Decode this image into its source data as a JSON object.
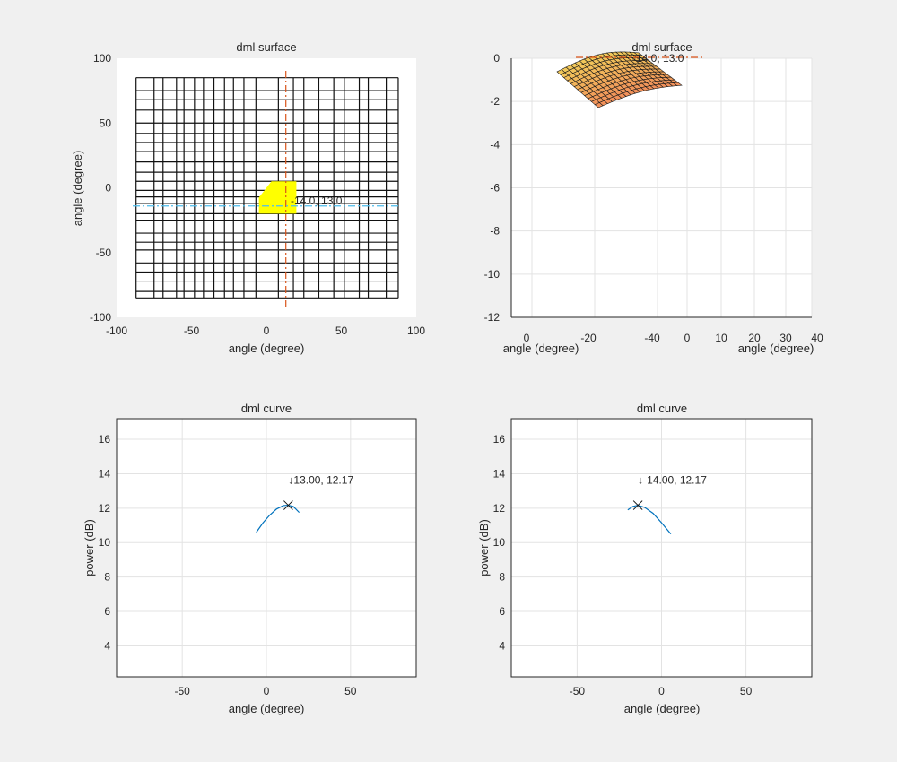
{
  "chart_data": [
    {
      "type": "heatmap",
      "title": "dml surface",
      "xlabel": "angle (degree)",
      "ylabel": "angle (degree)",
      "xlim": [
        -100,
        100
      ],
      "ylim": [
        -100,
        100
      ],
      "xticks": [
        "-100",
        "-50",
        "0",
        "50",
        "100"
      ],
      "yticks": [
        "100",
        "50",
        "0",
        "-50",
        "-100"
      ],
      "grid_x": [
        -87,
        -75,
        -69,
        -60,
        -55,
        -48,
        -42,
        -35,
        -28,
        -22,
        -15,
        -7,
        8,
        18,
        25,
        35,
        45,
        52,
        62,
        68,
        80,
        88
      ],
      "grid_y": [
        85,
        75,
        68,
        60,
        50,
        42,
        35,
        28,
        20,
        12,
        5,
        -2,
        -7,
        -12,
        -20,
        -25,
        -35,
        -42,
        -48,
        -58,
        -65,
        -72,
        -80,
        -85
      ],
      "peak_region": {
        "x": [
          -5,
          20
        ],
        "y": [
          -20,
          5
        ],
        "color": "#ffff00"
      },
      "marker_x": 13.0,
      "marker_y": -14.0,
      "annotation": "-14.0, 13.0",
      "crosshair_colors": [
        "#d95319",
        "#4dbeee"
      ]
    },
    {
      "type": "area",
      "title": "dml surface",
      "xlabel_left": "angle (degree)",
      "xlabel_right": "angle (degree)",
      "ylim": [
        -12,
        0
      ],
      "yticks": [
        "0",
        "-2",
        "-4",
        "-6",
        "-8",
        "-10",
        "-12"
      ],
      "xticks_left": [
        "0",
        "-20",
        "-40"
      ],
      "xticks_right": [
        "0",
        "10",
        "20",
        "30",
        "40"
      ],
      "annotation": "-14.0, 13.0",
      "surface_color": "#f2c45a"
    },
    {
      "type": "line",
      "title": "dml curve",
      "xlabel": "angle (degree)",
      "ylabel": "power (dB)",
      "xlim": [
        -89,
        89
      ],
      "ylim": [
        2.2,
        17.2
      ],
      "xticks": [
        "-50",
        "0",
        "50"
      ],
      "yticks": [
        "16",
        "14",
        "12",
        "10",
        "8",
        "6",
        "4"
      ],
      "x": [
        -6,
        -2,
        2,
        6,
        10,
        13,
        16,
        19.5
      ],
      "y": [
        10.6,
        11.15,
        11.6,
        11.95,
        12.15,
        12.17,
        12.1,
        11.75
      ],
      "peak": [
        13.0,
        12.17
      ],
      "annotation": "↓13.00, 12.17",
      "line_color": "#0072bd"
    },
    {
      "type": "line",
      "title": "dml curve",
      "xlabel": "angle (degree)",
      "ylabel": "power (dB)",
      "xlim": [
        -89,
        89
      ],
      "ylim": [
        2.2,
        17.2
      ],
      "xticks": [
        "-50",
        "0",
        "50"
      ],
      "yticks": [
        "16",
        "14",
        "12",
        "10",
        "8",
        "6",
        "4"
      ],
      "x": [
        -20,
        -17,
        -14,
        -10,
        -5,
        0,
        5.5
      ],
      "y": [
        11.9,
        12.1,
        12.17,
        12.05,
        11.7,
        11.15,
        10.5
      ],
      "peak": [
        -14.0,
        12.17
      ],
      "annotation": "↓-14.00, 12.17",
      "line_color": "#0072bd"
    }
  ]
}
